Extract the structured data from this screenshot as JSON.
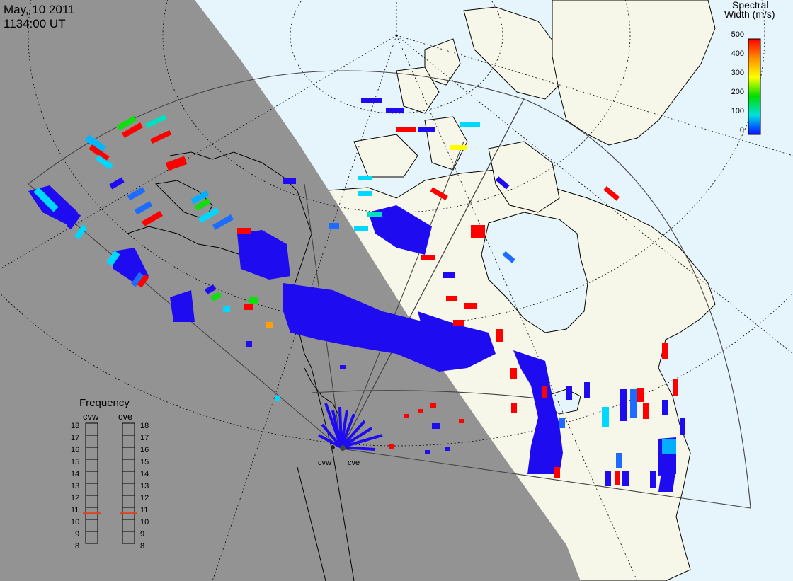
{
  "timestamp": {
    "date": "May, 10 2011",
    "time": "1134:00 UT"
  },
  "colorbar": {
    "title_line1": "Spectral",
    "title_line2": "Width (m/s)",
    "ticks": [
      "500",
      "400",
      "300",
      "200",
      "100",
      "0"
    ],
    "stops": [
      "#ff0000",
      "#ff8c00",
      "#ffff00",
      "#00dd00",
      "#00e0e0",
      "#0060ff",
      "#1010ff"
    ]
  },
  "frequency_panel": {
    "title": "Frequency",
    "radars": [
      "cvw",
      "cve"
    ],
    "scale": [
      "18",
      "17",
      "16",
      "15",
      "14",
      "13",
      "12",
      "11",
      "10",
      "9",
      "8"
    ],
    "selected": {
      "cvw": 11,
      "cve": 11
    },
    "marker_color": "#e0401a"
  },
  "site_labels": {
    "west": "cvw",
    "east": "cve"
  },
  "colors": {
    "night": "#939393",
    "day_land": "#f7f7e9",
    "day_ocean": "#e6f4fc",
    "low_width": "#1e0bf0"
  }
}
